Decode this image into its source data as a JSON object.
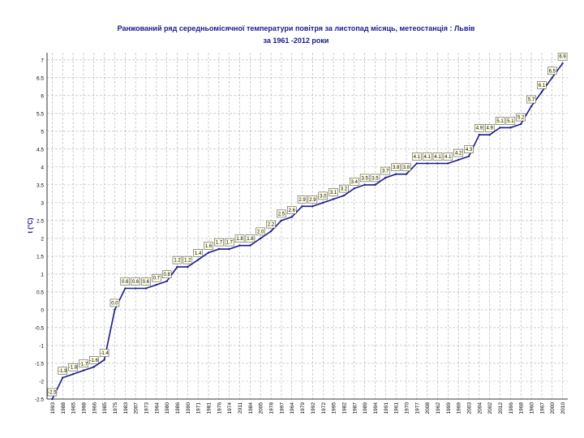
{
  "chart_data": {
    "type": "line",
    "title_line1": "Ранжований ряд середньомісячної температури повітря за листопад місяць,   метеостанція : Львів",
    "title_line2": "за 1961 -2012 роки",
    "xlabel": "",
    "ylabel": "t (°C)",
    "ylim": [
      -2.5,
      7.2
    ],
    "yticks": [
      -2.5,
      -2,
      -1.5,
      -1,
      -0.5,
      0,
      0.5,
      1,
      1.5,
      2,
      2.5,
      3,
      3.5,
      4,
      4.5,
      5,
      5.5,
      6,
      6.5,
      7
    ],
    "ytick_labels": [
      "-2.5",
      "-2",
      "-1.5",
      "-1",
      "-0.5",
      "0",
      "0.5",
      "1",
      "1.5",
      "2",
      "2.5",
      "3",
      "3.5",
      "4",
      "4.5",
      "5",
      "5.5",
      "6",
      "6.5",
      "7"
    ],
    "grid": true,
    "line_color": "#1a1a8c",
    "grid_color": "#b0b0b0",
    "categories": [
      "1993",
      "1988",
      "1965",
      "1998",
      "1966",
      "1985",
      "1975",
      "1983",
      "2007",
      "1973",
      "1964",
      "1980",
      "1986",
      "1990",
      "1971",
      "1981",
      "1976",
      "1974",
      "2011",
      "1984",
      "2005",
      "1978",
      "1997",
      "1964",
      "1979",
      "1992",
      "1972",
      "1995",
      "1982",
      "1987",
      "1989",
      "1994",
      "1991",
      "1961",
      "1970",
      "1977",
      "2008",
      "1962",
      "1999",
      "1969",
      "2003",
      "2004",
      "2002",
      "2012",
      "1996",
      "1968",
      "1960",
      "1967",
      "2000",
      "2010"
    ],
    "values": [
      -2.5,
      -1.9,
      -1.8,
      -1.7,
      -1.6,
      -1.4,
      0.0,
      0.6,
      0.6,
      0.6,
      0.7,
      0.8,
      1.2,
      1.2,
      1.4,
      1.6,
      1.7,
      1.7,
      1.8,
      1.8,
      2.0,
      2.2,
      2.5,
      2.6,
      2.9,
      2.9,
      3.0,
      3.1,
      3.2,
      3.4,
      3.5,
      3.5,
      3.7,
      3.8,
      3.8,
      4.1,
      4.1,
      4.1,
      4.1,
      4.2,
      4.3,
      4.9,
      4.9,
      5.1,
      5.1,
      5.2,
      5.7,
      6.1,
      6.5,
      6.9
    ],
    "data_labels": [
      "-2.5",
      "-1.9",
      "-1.8",
      "-1.7",
      "-1.6",
      "-1.4",
      "0.0",
      "0.6",
      "0.6",
      "0.6",
      "0.7",
      "0.8",
      "1.2",
      "1.2",
      "1.4",
      "1.6",
      "1.7",
      "1.7",
      "1.8",
      "1.8",
      "2.0",
      "2.2",
      "2.5",
      "2.6",
      "2.9",
      "2.9",
      "3.0",
      "3.1",
      "3.2",
      "3.4",
      "3.5",
      "3.5",
      "3.7",
      "3.8",
      "3.8",
      "4.1",
      "4.1",
      "4.1",
      "4.1",
      "4.2",
      "4.3",
      "4.9",
      "4.9",
      "5.1",
      "5.1",
      "5.2",
      "5.7",
      "6.1",
      "6.5",
      "6.9"
    ]
  }
}
